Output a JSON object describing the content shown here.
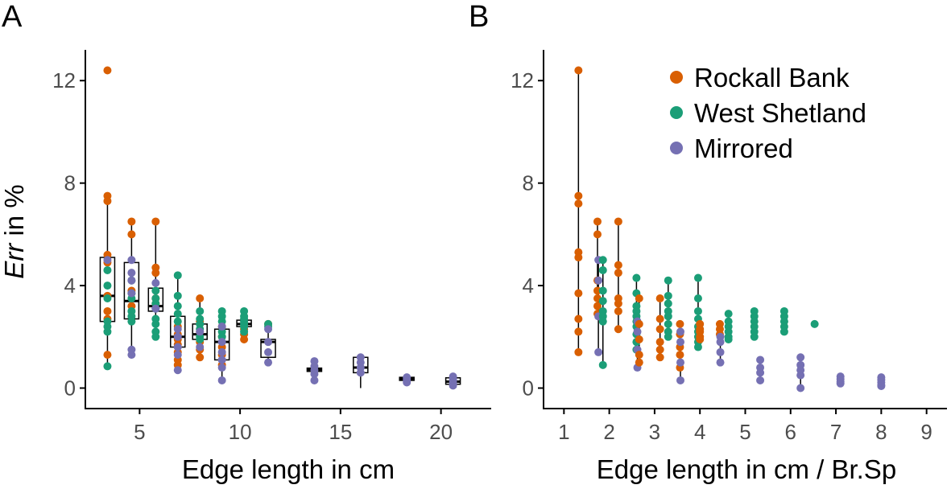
{
  "colors": {
    "rockall": "#d95f02",
    "shetland": "#1b9e77",
    "mirrored": "#7570b3"
  },
  "chart_data": [
    {
      "panel": "A",
      "type": "scatter",
      "overlay": "boxplot",
      "xlabel": "Edge length in cm",
      "ylabel_italic": "Err",
      "ylabel_rest": " in %",
      "xlim": [
        2.3,
        22.5
      ],
      "ylim": [
        -0.8,
        13.2
      ],
      "xticks": [
        5,
        10,
        15,
        20
      ],
      "yticks": [
        0,
        4,
        8,
        12
      ],
      "groups": [
        {
          "x": 3.4,
          "box": [
            2.6,
            3.6,
            5.1
          ],
          "whisker": [
            0.85,
            7.5
          ],
          "rockall": [
            12.4,
            7.5,
            7.3,
            5.2,
            4.9,
            3.6,
            3.0,
            2.7,
            1.3
          ],
          "shetland": [
            4.6,
            4.0,
            3.5,
            2.6,
            2.4,
            2.2,
            0.85
          ],
          "mirrored": [
            5.0
          ]
        },
        {
          "x": 4.6,
          "box": [
            2.7,
            3.4,
            4.9
          ],
          "whisker": [
            1.3,
            6.5
          ],
          "rockall": [
            6.5,
            6.0,
            3.8,
            3.2
          ],
          "shetland": [
            3.7,
            3.5,
            3.0,
            2.8,
            2.6,
            4.2
          ],
          "mirrored": [
            5.0,
            4.5,
            4.2,
            3.7,
            1.5,
            1.3
          ]
        },
        {
          "x": 5.8,
          "box": [
            3.0,
            3.2,
            3.9
          ],
          "whisker": [
            2.0,
            6.5
          ],
          "rockall": [
            6.5,
            4.7,
            4.5,
            3.5,
            3.3
          ],
          "shetland": [
            3.8,
            3.5,
            3.3,
            3.1,
            2.7,
            2.5,
            2.2,
            2.0
          ],
          "mirrored": [
            4.1,
            3.1
          ]
        },
        {
          "x": 6.9,
          "box": [
            1.6,
            2.0,
            2.8
          ],
          "whisker": [
            0.7,
            4.4
          ],
          "rockall": [
            2.4,
            2.1,
            1.9,
            1.7,
            1.4,
            1.1,
            0.9
          ],
          "shetland": [
            4.4,
            3.6,
            3.2,
            2.9,
            2.6
          ],
          "mirrored": [
            2.3,
            2.0,
            1.6,
            1.3,
            0.7
          ]
        },
        {
          "x": 8.0,
          "box": [
            1.9,
            2.1,
            2.5
          ],
          "whisker": [
            1.2,
            3.5
          ],
          "rockall": [
            3.5,
            2.6,
            2.2,
            1.8,
            1.5,
            1.2
          ],
          "shetland": [
            3.0,
            2.7,
            2.5,
            2.3,
            2.0,
            1.9
          ],
          "mirrored": [
            2.2,
            1.6
          ]
        },
        {
          "x": 9.1,
          "box": [
            1.1,
            1.8,
            2.3
          ],
          "whisker": [
            0.3,
            3.0
          ],
          "rockall": [
            2.4,
            2.0,
            1.6,
            1.3,
            0.9
          ],
          "shetland": [
            3.0,
            2.8,
            2.6,
            2.2,
            2.0
          ],
          "mirrored": [
            2.4,
            1.8,
            1.4,
            1.1,
            0.8,
            0.3
          ]
        },
        {
          "x": 10.2,
          "box": [
            2.4,
            2.5,
            2.65
          ],
          "whisker": [
            1.9,
            3.0
          ],
          "rockall": [
            2.3,
            2.1,
            1.9
          ],
          "shetland": [
            3.0,
            2.8,
            2.7,
            2.6,
            2.5,
            2.4,
            2.2
          ],
          "mirrored": []
        },
        {
          "x": 11.4,
          "box": [
            1.2,
            1.8,
            1.9
          ],
          "whisker": [
            0.95,
            2.5
          ],
          "rockall": [
            2.5
          ],
          "shetland": [
            2.5,
            2.4
          ],
          "mirrored": [
            2.3,
            1.8,
            1.4,
            1.0
          ]
        },
        {
          "x": 13.7,
          "box": [
            0.65,
            0.72,
            0.78
          ],
          "whisker": [
            0.3,
            1.1
          ],
          "rockall": [],
          "shetland": [],
          "mirrored": [
            1.05,
            0.85,
            0.7,
            0.55,
            0.3
          ]
        },
        {
          "x": 16.0,
          "box": [
            0.6,
            0.8,
            1.2
          ],
          "whisker": [
            0.0,
            1.3
          ],
          "rockall": [],
          "shetland": [],
          "mirrored": [
            1.2,
            1.0,
            0.8,
            0.6
          ]
        },
        {
          "x": 18.3,
          "box": [
            0.3,
            0.36,
            0.42
          ],
          "whisker": [
            0.2,
            0.5
          ],
          "rockall": [],
          "shetland": [],
          "mirrored": [
            0.42,
            0.35,
            0.28,
            0.22
          ]
        },
        {
          "x": 20.6,
          "box": [
            0.15,
            0.25,
            0.4
          ],
          "whisker": [
            0.1,
            0.5
          ],
          "rockall": [],
          "shetland": [],
          "mirrored": [
            0.45,
            0.35,
            0.25,
            0.15,
            0.1
          ]
        }
      ]
    },
    {
      "panel": "B",
      "type": "scatter",
      "overlay": "range",
      "xlabel": "Edge length in cm / Br.Sp",
      "xlim": [
        0.55,
        9.45
      ],
      "ylim": [
        -0.8,
        13.2
      ],
      "xticks": [
        1,
        2,
        3,
        4,
        5,
        6,
        7,
        8,
        9
      ],
      "yticks": [
        0,
        4,
        8,
        12
      ],
      "legend": [
        "Rockall Bank",
        "West Shetland",
        "Mirrored"
      ],
      "legend_position": "top-right",
      "groups": [
        {
          "x": 1.32,
          "color": "rockall",
          "values": [
            12.4,
            7.5,
            7.2,
            5.3,
            5.1,
            3.7,
            2.7,
            2.2,
            1.4
          ]
        },
        {
          "x": 1.74,
          "color": "rockall",
          "values": [
            6.5,
            6.0,
            4.2,
            3.8,
            3.5,
            3.2,
            2.9
          ]
        },
        {
          "x": 1.76,
          "color": "mirrored",
          "values": [
            5.0,
            4.2,
            2.8,
            1.4
          ]
        },
        {
          "x": 1.86,
          "color": "shetland",
          "values": [
            5.0,
            4.6,
            3.8,
            3.4,
            3.0,
            2.8,
            2.6,
            0.9
          ]
        },
        {
          "x": 2.2,
          "color": "rockall",
          "values": [
            6.5,
            4.8,
            4.5,
            3.5,
            3.3,
            3.0,
            2.3
          ]
        },
        {
          "x": 2.6,
          "color": "shetland",
          "values": [
            4.3,
            3.7,
            3.2,
            3.0,
            2.8,
            2.6,
            2.4,
            2.1,
            1.8,
            1.5
          ]
        },
        {
          "x": 2.62,
          "color": "mirrored",
          "values": [
            2.6,
            2.2,
            1.5,
            0.8
          ]
        },
        {
          "x": 2.66,
          "color": "rockall",
          "values": [
            3.5,
            2.5,
            1.9,
            1.3,
            1.0
          ]
        },
        {
          "x": 3.12,
          "color": "rockall",
          "values": [
            3.5,
            2.7,
            2.3,
            1.8,
            1.5,
            1.2
          ]
        },
        {
          "x": 3.3,
          "color": "shetland",
          "values": [
            4.2,
            3.6,
            3.3,
            3.0,
            2.8,
            2.5,
            2.2,
            2.0
          ]
        },
        {
          "x": 3.56,
          "color": "rockall",
          "values": [
            2.5,
            2.1,
            1.6,
            1.3,
            0.8
          ]
        },
        {
          "x": 3.57,
          "color": "mirrored",
          "values": [
            2.2,
            1.8,
            1.0,
            0.3
          ]
        },
        {
          "x": 3.96,
          "color": "shetland",
          "values": [
            4.3,
            3.5,
            3.0,
            2.7,
            2.4,
            2.2,
            2.0,
            1.8,
            1.6
          ]
        },
        {
          "x": 4.0,
          "color": "rockall",
          "values": [
            2.5,
            2.3,
            2.2,
            2.0,
            1.9
          ]
        },
        {
          "x": 4.44,
          "color": "rockall",
          "values": [
            2.5,
            2.3,
            2.1
          ]
        },
        {
          "x": 4.45,
          "color": "mirrored",
          "values": [
            2.0,
            1.8,
            1.4,
            1.0
          ]
        },
        {
          "x": 4.63,
          "color": "shetland",
          "values": [
            2.9,
            2.6,
            2.4,
            2.2,
            2.0,
            1.9
          ]
        },
        {
          "x": 5.2,
          "color": "shetland",
          "values": [
            3.0,
            2.8,
            2.6,
            2.4,
            2.2,
            2.0
          ]
        },
        {
          "x": 5.33,
          "color": "mirrored",
          "values": [
            1.1,
            0.8,
            0.6,
            0.3
          ]
        },
        {
          "x": 5.86,
          "color": "shetland",
          "values": [
            3.0,
            2.8,
            2.6,
            2.4,
            2.2
          ]
        },
        {
          "x": 6.22,
          "color": "mirrored",
          "values": [
            1.2,
            0.9,
            0.7,
            0.5,
            0.0
          ]
        },
        {
          "x": 6.53,
          "color": "shetland",
          "values": [
            2.5
          ]
        },
        {
          "x": 7.1,
          "color": "mirrored",
          "values": [
            0.45,
            0.35,
            0.25,
            0.18
          ]
        },
        {
          "x": 8.0,
          "color": "mirrored",
          "values": [
            0.42,
            0.32,
            0.22,
            0.12,
            0.08
          ]
        }
      ]
    }
  ]
}
